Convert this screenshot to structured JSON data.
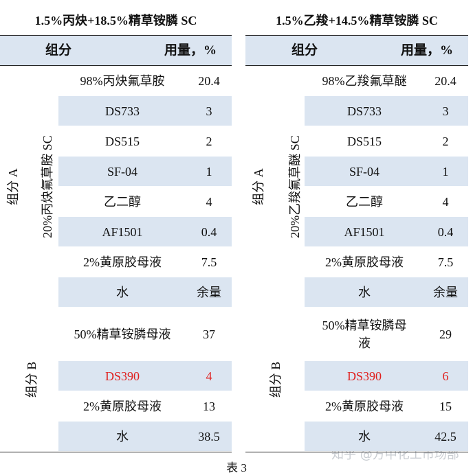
{
  "tables": [
    {
      "title": "1.5%丙炔+18.5%精草铵膦 SC",
      "header": [
        "组分",
        "用量，%"
      ],
      "group_a": {
        "label": "组分 A",
        "sublabel": "20%丙炔氟草胺 SC",
        "rows": [
          [
            "98%丙炔氟草胺",
            "20.4"
          ],
          [
            "DS733",
            "3"
          ],
          [
            "DS515",
            "2"
          ],
          [
            "SF-04",
            "1"
          ],
          [
            "乙二醇",
            "4"
          ],
          [
            "AF1501",
            "0.4"
          ],
          [
            "2%黄原胶母液",
            "7.5"
          ],
          [
            "水",
            "余量"
          ]
        ]
      },
      "group_b": {
        "label": "组分 B",
        "rows": [
          [
            "50%精草铵膦母液",
            "37"
          ],
          [
            "DS390",
            "4"
          ],
          [
            "2%黄原胶母液",
            "13"
          ],
          [
            "水",
            "38.5"
          ]
        ]
      }
    },
    {
      "title": "1.5%乙羧+14.5%精草铵膦 SC",
      "header": [
        "组分",
        "用量，%"
      ],
      "group_a": {
        "label": "组分 A",
        "sublabel": "20%乙羧氟草醚 SC",
        "rows": [
          [
            "98%乙羧氟草醚",
            "20.4"
          ],
          [
            "DS733",
            "3"
          ],
          [
            "DS515",
            "2"
          ],
          [
            "SF-04",
            "1"
          ],
          [
            "乙二醇",
            "4"
          ],
          [
            "AF1501",
            "0.4"
          ],
          [
            "2%黄原胶母液",
            "7.5"
          ],
          [
            "水",
            "余量"
          ]
        ]
      },
      "group_b": {
        "label": "组分 B",
        "rows": [
          [
            "50%精草铵膦母液",
            "29"
          ],
          [
            "DS390",
            "6"
          ],
          [
            "2%黄原胶母液",
            "15"
          ],
          [
            "水",
            "42.5"
          ]
        ]
      }
    }
  ],
  "caption": "表 3",
  "watermark": "知乎 @方中化工市场部"
}
